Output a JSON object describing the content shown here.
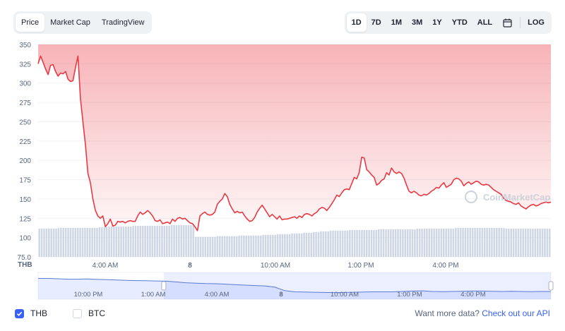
{
  "tabs": [
    {
      "label": "Price",
      "active": true
    },
    {
      "label": "Market Cap",
      "active": false
    },
    {
      "label": "TradingView",
      "active": false
    }
  ],
  "ranges": [
    {
      "label": "1D",
      "active": true
    },
    {
      "label": "7D",
      "active": false
    },
    {
      "label": "1M",
      "active": false
    },
    {
      "label": "3M",
      "active": false
    },
    {
      "label": "1Y",
      "active": false
    },
    {
      "label": "YTD",
      "active": false
    },
    {
      "label": "ALL",
      "active": false
    }
  ],
  "calendar_icon": "calendar-icon",
  "log_label": "LOG",
  "currency_label": "THB",
  "watermark": "CoinMarketCap",
  "legend": [
    {
      "label": "THB",
      "checked": true
    },
    {
      "label": "BTC",
      "checked": false
    }
  ],
  "more_data": {
    "text": "Want more data?",
    "link": "Check out our API"
  },
  "colors": {
    "line": "#ea3943",
    "fill": "#ea3943",
    "volume": "#cfd6e4",
    "accent": "#3861fb",
    "grid": "#eff2f5"
  },
  "chart_data": {
    "type": "area",
    "ylim": [
      75,
      350
    ],
    "y_ticks": [
      "350",
      "325",
      "300",
      "275",
      "250",
      "225",
      "200",
      "175",
      "150",
      "125",
      "100",
      "75.0"
    ],
    "x_ticks": [
      "4:00 AM",
      "8",
      "10:00 AM",
      "1:00 PM",
      "4:00 PM"
    ],
    "series": [
      {
        "values": [
          325,
          335,
          327,
          318,
          311,
          323,
          324,
          315,
          309,
          313,
          312,
          315,
          305,
          302,
          303,
          320,
          335,
          280,
          250,
          220,
          183,
          171,
          150,
          135,
          128,
          125,
          128,
          114,
          118,
          124,
          115,
          116,
          121,
          120,
          121,
          119,
          121,
          122,
          121,
          121,
          128,
          133,
          130,
          132,
          135,
          132,
          128,
          122,
          121,
          123,
          118,
          119,
          120,
          118,
          124,
          121,
          125,
          126,
          124,
          125,
          122,
          119,
          118,
          114,
          109,
          128,
          131,
          133,
          130,
          129,
          130,
          133,
          143,
          147,
          150,
          157,
          153,
          143,
          137,
          132,
          134,
          132,
          133,
          128,
          124,
          121,
          122,
          126,
          133,
          138,
          142,
          137,
          132,
          127,
          130,
          127,
          124,
          128,
          123,
          124,
          124,
          125,
          126,
          127,
          125,
          128,
          126,
          130,
          131,
          130,
          128,
          131,
          133,
          137,
          139,
          138,
          135,
          139,
          144,
          149,
          155,
          153,
          158,
          162,
          163,
          162,
          170,
          178,
          176,
          184,
          204,
          203,
          188,
          185,
          181,
          178,
          168,
          170,
          174,
          176,
          184,
          181,
          190,
          185,
          183,
          185,
          183,
          177,
          168,
          160,
          158,
          160,
          158,
          155,
          154,
          156,
          155,
          157,
          160,
          162,
          165,
          164,
          168,
          171,
          165,
          167,
          169,
          175,
          177,
          176,
          173,
          167,
          170,
          172,
          169,
          171,
          173,
          172,
          169,
          168,
          169,
          168,
          165,
          162,
          160,
          158,
          156,
          151,
          148,
          147,
          146,
          144,
          143,
          145,
          141,
          139,
          137,
          140,
          142,
          143,
          141,
          142,
          144,
          145,
          146,
          145,
          146
        ]
      }
    ],
    "volume_level_fractions": [
      0.41,
      0.41,
      0.41,
      0.41,
      0.41,
      0.41,
      0.41,
      0.41,
      0.42,
      0.42,
      0.42,
      0.42,
      0.42,
      0.42,
      0.42,
      0.42,
      0.42,
      0.42,
      0.42,
      0.42,
      0.42,
      0.42,
      0.42,
      0.42,
      0.42,
      0.43,
      0.43,
      0.43,
      0.43,
      0.44,
      0.44,
      0.44,
      0.44,
      0.44,
      0.44,
      0.44,
      0.44,
      0.44,
      0.44,
      0.45,
      0.45,
      0.45,
      0.45,
      0.45,
      0.45,
      0.45,
      0.45,
      0.45,
      0.45,
      0.45,
      0.45,
      0.45,
      0.45,
      0.45,
      0.45,
      0.46,
      0.46,
      0.46,
      0.46,
      0.46,
      0.46,
      0.46,
      0.46,
      0.46,
      0.46,
      0.29,
      0.29,
      0.29,
      0.29,
      0.29,
      0.29,
      0.29,
      0.29,
      0.29,
      0.3,
      0.3,
      0.3,
      0.3,
      0.3,
      0.3,
      0.3,
      0.3,
      0.3,
      0.31,
      0.31,
      0.31,
      0.31,
      0.31,
      0.31,
      0.31,
      0.31,
      0.31,
      0.31,
      0.32,
      0.32,
      0.32,
      0.32,
      0.32,
      0.32,
      0.33,
      0.33,
      0.33,
      0.33,
      0.33,
      0.33,
      0.34,
      0.34,
      0.34,
      0.34,
      0.34,
      0.35,
      0.35,
      0.35,
      0.35,
      0.36,
      0.36,
      0.36,
      0.37,
      0.37,
      0.37,
      0.37,
      0.38,
      0.38,
      0.38,
      0.38,
      0.38,
      0.38,
      0.38,
      0.38,
      0.39,
      0.39,
      0.39,
      0.39,
      0.39,
      0.39,
      0.39,
      0.39,
      0.39,
      0.39,
      0.39,
      0.39,
      0.4,
      0.4,
      0.4,
      0.4,
      0.4,
      0.4,
      0.4,
      0.4,
      0.4,
      0.4,
      0.4,
      0.4,
      0.4,
      0.4,
      0.4,
      0.4,
      0.41,
      0.41,
      0.41,
      0.41,
      0.41,
      0.41,
      0.41,
      0.41,
      0.41,
      0.41,
      0.41,
      0.41,
      0.41,
      0.41,
      0.41,
      0.41,
      0.42,
      0.42,
      0.42,
      0.42,
      0.42,
      0.42,
      0.42,
      0.42,
      0.42,
      0.42,
      0.42,
      0.42,
      0.42,
      0.42,
      0.42,
      0.42,
      0.42,
      0.42,
      0.42,
      0.42,
      0.42,
      0.41,
      0.41,
      0.41,
      0.41,
      0.41,
      0.41,
      0.41,
      0.41,
      0.41,
      0.41,
      0.41,
      0.41,
      0.41,
      0.41,
      0.41,
      0.41,
      0.41,
      0.41,
      0.41
    ],
    "navigator": {
      "x_ticks": [
        "10:00 PM",
        "1:00 AM",
        "4:00 AM",
        "8",
        "10:00 AM",
        "1:00 PM",
        "4:00 PM"
      ],
      "selection_fraction": [
        0.245,
        1.0
      ],
      "line": [
        0.16,
        0.16,
        0.18,
        0.2,
        0.2,
        0.19,
        0.21,
        0.22,
        0.24,
        0.26,
        0.27,
        0.28,
        0.29,
        0.3,
        0.34,
        0.38,
        0.4,
        0.42,
        0.43,
        0.45,
        0.48,
        0.5,
        0.52,
        0.54,
        0.6,
        0.78,
        0.84,
        0.85,
        0.86,
        0.87,
        0.88,
        0.87,
        0.86,
        0.85,
        0.84,
        0.84,
        0.84,
        0.82,
        0.8,
        0.79,
        0.82,
        0.83,
        0.82,
        0.81,
        0.8,
        0.8,
        0.81,
        0.82,
        0.81,
        0.82,
        0.83,
        0.82,
        0.82
      ]
    }
  }
}
